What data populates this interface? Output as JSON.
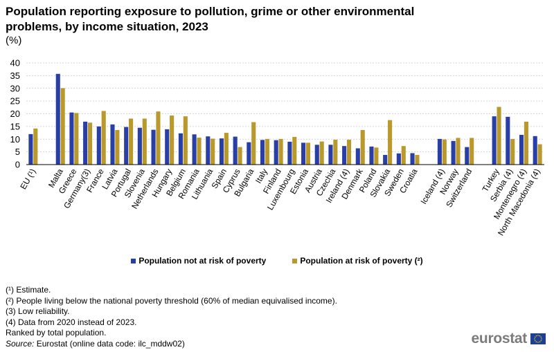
{
  "title": "Population reporting exposure to pollution, grime or other environmental problems, by income situation, 2023",
  "unit": "(%)",
  "legend": {
    "not_at_risk": "Population not at risk of poverty",
    "at_risk": "Population at risk of poverty (²)"
  },
  "notes": [
    "(¹) Estimate.",
    "(²) People living below the national poverty threshold (60% of median equivalised income).",
    "(3) Low reliability.",
    "(4) Data from 2020 instead of 2023.",
    "Ranked by total population."
  ],
  "source": {
    "label": "Source:",
    "text": " Eurostat (online data code: ilc_mddw02)"
  },
  "logo": {
    "text": "eurostat",
    "icon": "eu-flag-icon"
  },
  "colors": {
    "not_at_risk": "#2a3fa6",
    "at_risk": "#b9992c",
    "grid": "#c8c8c8",
    "axis": "#000000"
  },
  "chart_data": {
    "type": "bar",
    "ylim": [
      0,
      40
    ],
    "yticks": [
      0,
      5,
      10,
      15,
      20,
      25,
      30,
      35,
      40
    ],
    "grid": true,
    "legend_position": "bottom",
    "groups": [
      [
        "EU (¹)"
      ],
      [
        "Malta",
        "Greece",
        "Germany(3)",
        "France",
        "Latvia",
        "Portugal",
        "Slovenia",
        "Netherlands",
        "Hungary",
        "Belgium",
        "Romania",
        "Lithuania",
        "Spain",
        "Cyprus",
        "Bulgaria",
        "Italy",
        "Finland",
        "Luxembourg",
        "Estonia",
        "Austria",
        "Czechia",
        "Ireland (4)",
        "Denmark",
        "Poland",
        "Slovakia",
        "Sweden",
        "Croatia"
      ],
      [
        "Iceland (4)",
        "Norway",
        "Switzerland"
      ],
      [
        "Turkey",
        "Serbia (4)",
        "Montenegro (4)",
        "North Macedonia (4)"
      ]
    ],
    "categories": [
      "EU (¹)",
      "Malta",
      "Greece",
      "Germany(3)",
      "France",
      "Latvia",
      "Portugal",
      "Slovenia",
      "Netherlands",
      "Hungary",
      "Belgium",
      "Romania",
      "Lithuania",
      "Spain",
      "Cyprus",
      "Bulgaria",
      "Italy",
      "Finland",
      "Luxembourg",
      "Estonia",
      "Austria",
      "Czechia",
      "Ireland (4)",
      "Denmark",
      "Poland",
      "Slovakia",
      "Sweden",
      "Croatia",
      "Iceland (4)",
      "Norway",
      "Switzerland",
      "Turkey",
      "Serbia (4)",
      "Montenegro (4)",
      "North Macedonia (4)"
    ],
    "series": [
      {
        "name": "Population not at risk of poverty",
        "values": [
          12.0,
          35.7,
          20.5,
          16.9,
          15.0,
          15.8,
          14.8,
          14.5,
          13.7,
          13.9,
          12.3,
          11.9,
          11.1,
          10.3,
          11.0,
          8.8,
          9.7,
          9.6,
          9.0,
          8.6,
          7.8,
          7.8,
          7.3,
          6.4,
          7.1,
          3.8,
          4.4,
          4.5,
          10.1,
          9.3,
          6.9,
          19.0,
          18.8,
          11.7,
          11.2
        ]
      },
      {
        "name": "Population at risk of poverty (²)",
        "values": [
          14.2,
          30.1,
          20.3,
          16.5,
          21.1,
          13.6,
          18.1,
          18.1,
          20.9,
          19.3,
          19.0,
          10.6,
          10.2,
          12.5,
          6.9,
          16.7,
          10.1,
          10.1,
          10.9,
          8.6,
          9.1,
          9.8,
          9.8,
          13.6,
          6.7,
          17.5,
          7.3,
          3.8,
          9.9,
          10.5,
          10.5,
          22.7,
          10.1,
          16.9,
          8.0
        ]
      }
    ]
  }
}
